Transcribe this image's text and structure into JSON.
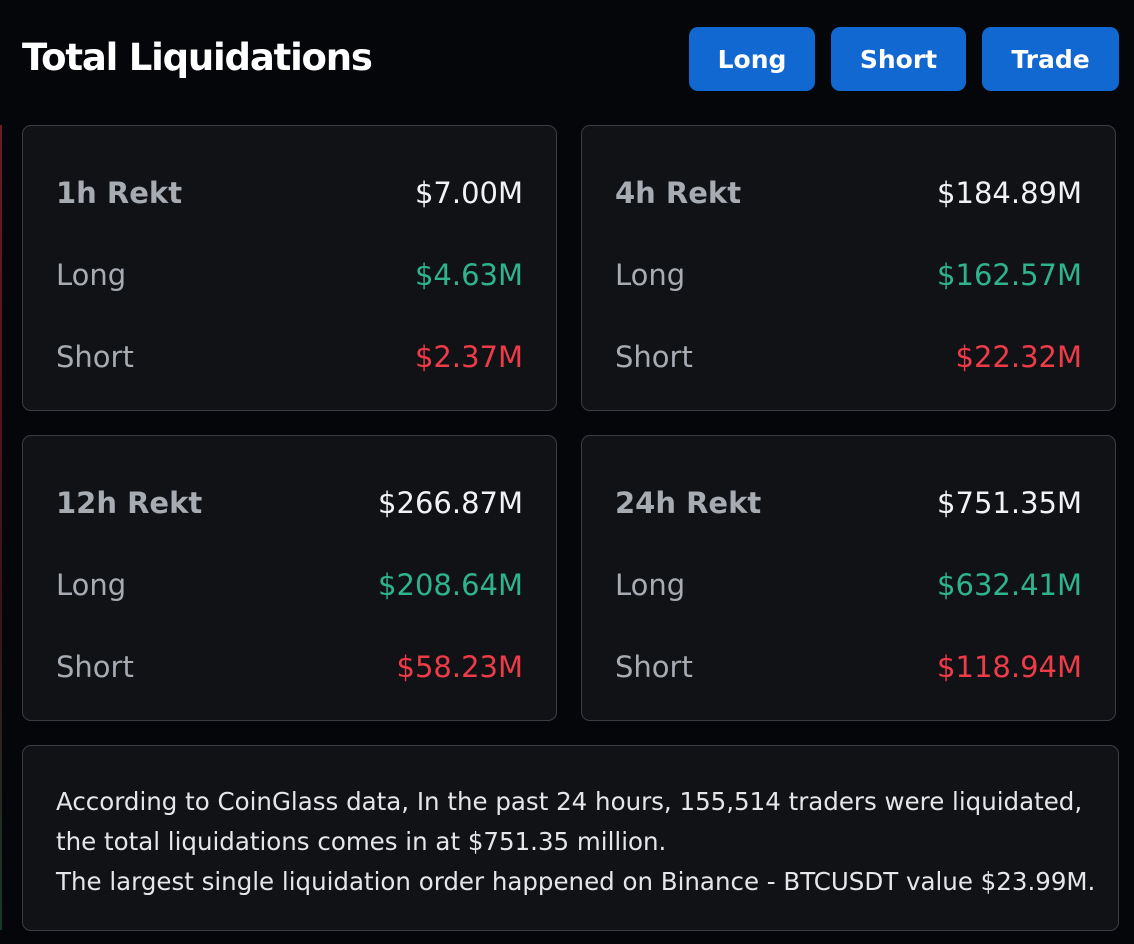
{
  "header": {
    "title": "Total Liquidations",
    "buttons": [
      "Long",
      "Short",
      "Trade"
    ]
  },
  "cards": [
    {
      "label": "1h Rekt",
      "total": "$7.00M",
      "rows": [
        {
          "label": "Long",
          "value": "$4.63M"
        },
        {
          "label": "Short",
          "value": "$2.37M"
        }
      ]
    },
    {
      "label": "4h Rekt",
      "total": "$184.89M",
      "rows": [
        {
          "label": "Long",
          "value": "$162.57M"
        },
        {
          "label": "Short",
          "value": "$22.32M"
        }
      ]
    },
    {
      "label": "12h Rekt",
      "total": "$266.87M",
      "rows": [
        {
          "label": "Long",
          "value": "$208.64M"
        },
        {
          "label": "Short",
          "value": "$58.23M"
        }
      ]
    },
    {
      "label": "24h Rekt",
      "total": "$751.35M",
      "rows": [
        {
          "label": "Long",
          "value": "$632.41M"
        },
        {
          "label": "Short",
          "value": "$118.94M"
        }
      ]
    }
  ],
  "summary": {
    "lines": [
      "According to CoinGlass data, In the past 24 hours, 155,514 traders were liquidated,",
      "the total liquidations comes in at $751.35 million.",
      "The largest single liquidation order happened on Binance - BTCUSDT value $23.99M."
    ]
  }
}
